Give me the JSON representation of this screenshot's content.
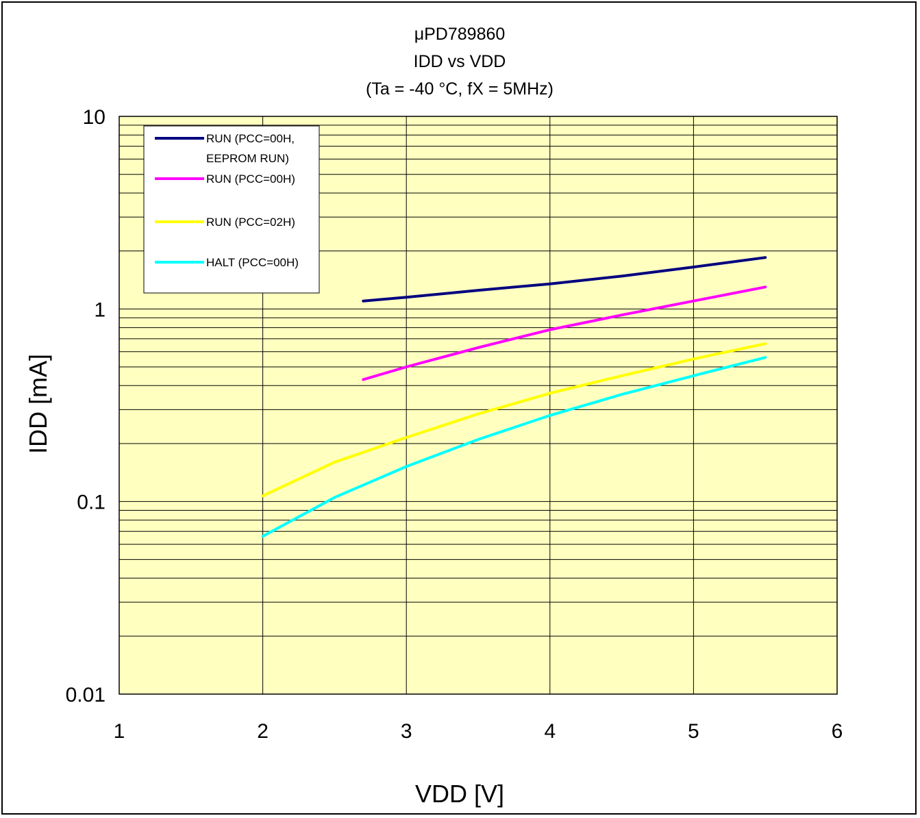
{
  "chart_data": {
    "type": "line",
    "title_lines": [
      "μPD789860",
      "IDD vs VDD",
      "(Ta = -40 °C, fX = 5MHz)"
    ],
    "xlabel": "VDD [V]",
    "ylabel": "IDD [mA]",
    "xlim": [
      1,
      6
    ],
    "ylim": [
      0.01,
      10
    ],
    "yscale": "log",
    "x_ticks": [
      "1",
      "2",
      "3",
      "4",
      "5",
      "6"
    ],
    "y_ticks": [
      "0.01",
      "0.1",
      "1",
      "10"
    ],
    "grid": true,
    "plot_background": "#ffffc0",
    "legend_position": "top-left",
    "series": [
      {
        "name": "RUN (PCC=00H, EEPROM RUN)",
        "legend_lines": [
          "RUN (PCC=00H,",
          "EEPROM RUN)"
        ],
        "color": "#000080",
        "x": [
          2.7,
          3.0,
          3.5,
          4.0,
          4.5,
          5.0,
          5.5
        ],
        "y": [
          1.1,
          1.15,
          1.25,
          1.35,
          1.48,
          1.65,
          1.85
        ]
      },
      {
        "name": "RUN (PCC=00H)",
        "legend_lines": [
          "RUN (PCC=00H)"
        ],
        "color": "#ff00ff",
        "x": [
          2.7,
          3.0,
          3.5,
          4.0,
          4.5,
          5.0,
          5.5
        ],
        "y": [
          0.43,
          0.5,
          0.63,
          0.78,
          0.93,
          1.1,
          1.3
        ]
      },
      {
        "name": "RUN (PCC=02H)",
        "legend_lines": [
          "RUN (PCC=02H)"
        ],
        "color": "#ffff00",
        "x": [
          2.0,
          2.5,
          3.0,
          3.5,
          4.0,
          4.5,
          5.0,
          5.5
        ],
        "y": [
          0.107,
          0.16,
          0.215,
          0.285,
          0.365,
          0.45,
          0.55,
          0.66
        ]
      },
      {
        "name": "HALT (PCC=00H)",
        "legend_lines": [
          "HALT (PCC=00H)"
        ],
        "color": "#00ffff",
        "x": [
          2.0,
          2.5,
          3.0,
          3.5,
          4.0,
          4.5,
          5.0,
          5.5
        ],
        "y": [
          0.066,
          0.105,
          0.152,
          0.21,
          0.28,
          0.36,
          0.45,
          0.56
        ]
      }
    ]
  }
}
